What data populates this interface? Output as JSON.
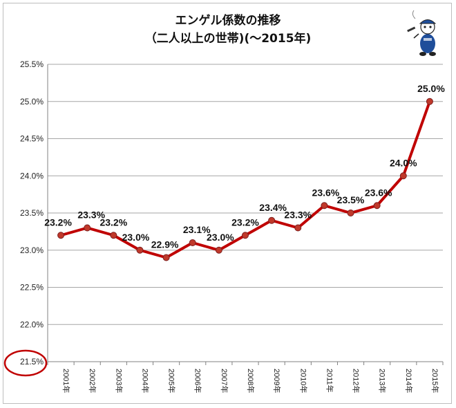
{
  "title_lines": [
    "エンゲル係数の推移",
    "（二人以上の世帯)(〜2015年)"
  ],
  "chart_data": {
    "type": "line",
    "categories": [
      "2001年",
      "2002年",
      "2003年",
      "2004年",
      "2005年",
      "2006年",
      "2007年",
      "2008年",
      "2009年",
      "2010年",
      "2011年",
      "2012年",
      "2013年",
      "2014年",
      "2015年"
    ],
    "values": [
      23.2,
      23.3,
      23.2,
      23.0,
      22.9,
      23.1,
      23.0,
      23.2,
      23.4,
      23.3,
      23.6,
      23.5,
      23.6,
      24.0,
      25.0
    ],
    "data_labels": [
      "23.2%",
      "23.3%",
      "23.2%",
      "23.0%",
      "22.9%",
      "23.1%",
      "23.0%",
      "23.2%",
      "23.4%",
      "23.3%",
      "23.6%",
      "23.5%",
      "23.6%",
      "24.0%",
      "25.0%"
    ],
    "ylim": [
      21.5,
      25.5
    ],
    "yticks": [
      "21.5%",
      "22.0%",
      "22.5%",
      "23.0%",
      "23.5%",
      "24.0%",
      "24.5%",
      "25.0%",
      "25.5%"
    ],
    "ytick_values": [
      21.5,
      22.0,
      22.5,
      23.0,
      23.5,
      24.0,
      24.5,
      25.0,
      25.5
    ],
    "grid": "horizontal",
    "line_color": "#c00000",
    "marker_color": "#c0392b",
    "annotation": {
      "type": "circle",
      "target": "21.5%",
      "color": "#c00000"
    }
  },
  "mascot": {
    "icon": "mascot-icon"
  }
}
